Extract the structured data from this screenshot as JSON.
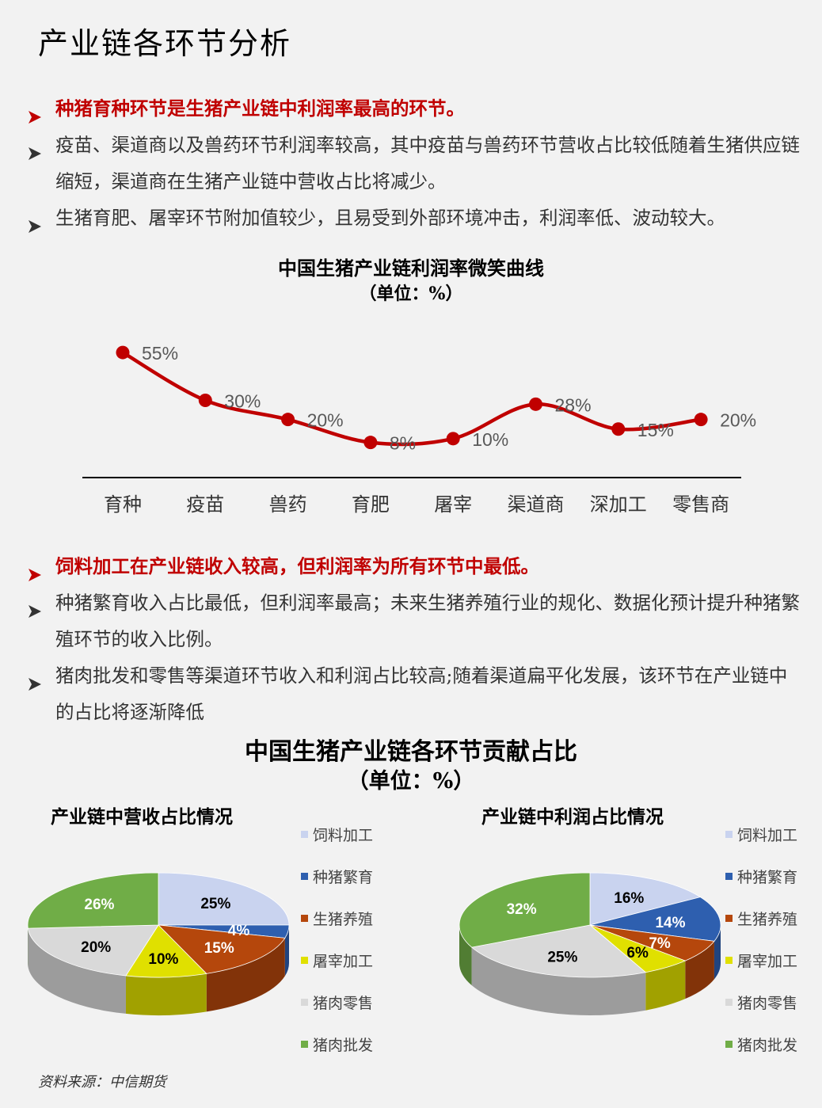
{
  "title": "产业链各环节分析",
  "section1": {
    "bullets": [
      {
        "text": "种猪育种环节是生猪产业链中利润率最高的环节。",
        "highlight": true
      },
      {
        "text": "疫苗、渠道商以及兽药环节利润率较高，其中疫苗与兽药环节营收占比较低随着生猪供应链缩短，渠道商在生猪产业链中营收占比将减少。",
        "highlight": false
      },
      {
        "text": "生猪育肥、屠宰环节附加值较少，且易受到外部环境冲击，利润率低、波动较大。",
        "highlight": false
      }
    ]
  },
  "line_chart": {
    "title": "中国生猪产业链利润率微笑曲线",
    "unit": "（单位：%）"
  },
  "section2": {
    "bullets": [
      {
        "text": "饲料加工在产业链收入较高，但利润率为所有环节中最低。",
        "highlight": true
      },
      {
        "text": "种猪繁育收入占比最低，但利润率最高；未来生猪养殖行业的规化、数据化预计提升种猪繁殖环节的收入比例。",
        "highlight": false
      },
      {
        "text": "猪肉批发和零售等渠道环节收入和利润占比较高;随着渠道扁平化发展，该环节在产业链中的占比将逐渐降低",
        "highlight": false
      }
    ]
  },
  "pie_section": {
    "title": "中国生猪产业链各环节贡献占比",
    "unit": "（单位：%）",
    "revenue_title": "产业链中营收占比情况",
    "profit_title": "产业链中利润占比情况"
  },
  "chart_data": [
    {
      "type": "line",
      "title": "中国生猪产业链利润率微笑曲线",
      "unit": "（单位：%）",
      "categories": [
        "育种",
        "疫苗",
        "兽药",
        "育肥",
        "屠宰",
        "渠道商",
        "深加工",
        "零售商"
      ],
      "values": [
        55,
        30,
        20,
        8,
        10,
        28,
        15,
        20
      ],
      "data_labels": [
        "55%",
        "30%",
        "20%",
        "8%",
        "10%",
        "28%",
        "15%",
        "20%"
      ],
      "color": "#c00000",
      "ylim": [
        0,
        60
      ]
    },
    {
      "type": "pie",
      "title": "产业链中营收占比情况",
      "categories": [
        "饲料加工",
        "种猪繁育",
        "生猪养殖",
        "屠宰加工",
        "猪肉零售",
        "猪肉批发"
      ],
      "values": [
        25,
        4,
        15,
        10,
        20,
        26
      ],
      "data_labels": [
        "25%",
        "4%",
        "15%",
        "10%",
        "20%",
        "26%"
      ],
      "colors": [
        "#c9d3ef",
        "#2e5faf",
        "#b5470c",
        "#e0e000",
        "#d9d9d9",
        "#70ad47"
      ],
      "legend": "right"
    },
    {
      "type": "pie",
      "title": "产业链中利润占比情况",
      "categories": [
        "饲料加工",
        "种猪繁育",
        "生猪养殖",
        "屠宰加工",
        "猪肉零售",
        "猪肉批发"
      ],
      "values": [
        16,
        14,
        7,
        6,
        25,
        32
      ],
      "data_labels": [
        "16%",
        "14%",
        "7%",
        "6%",
        "25%",
        "32%"
      ],
      "colors": [
        "#c9d3ef",
        "#2e5faf",
        "#b5470c",
        "#e0e000",
        "#d9d9d9",
        "#70ad47"
      ],
      "legend": "right"
    }
  ],
  "source": "资料来源：中信期货"
}
